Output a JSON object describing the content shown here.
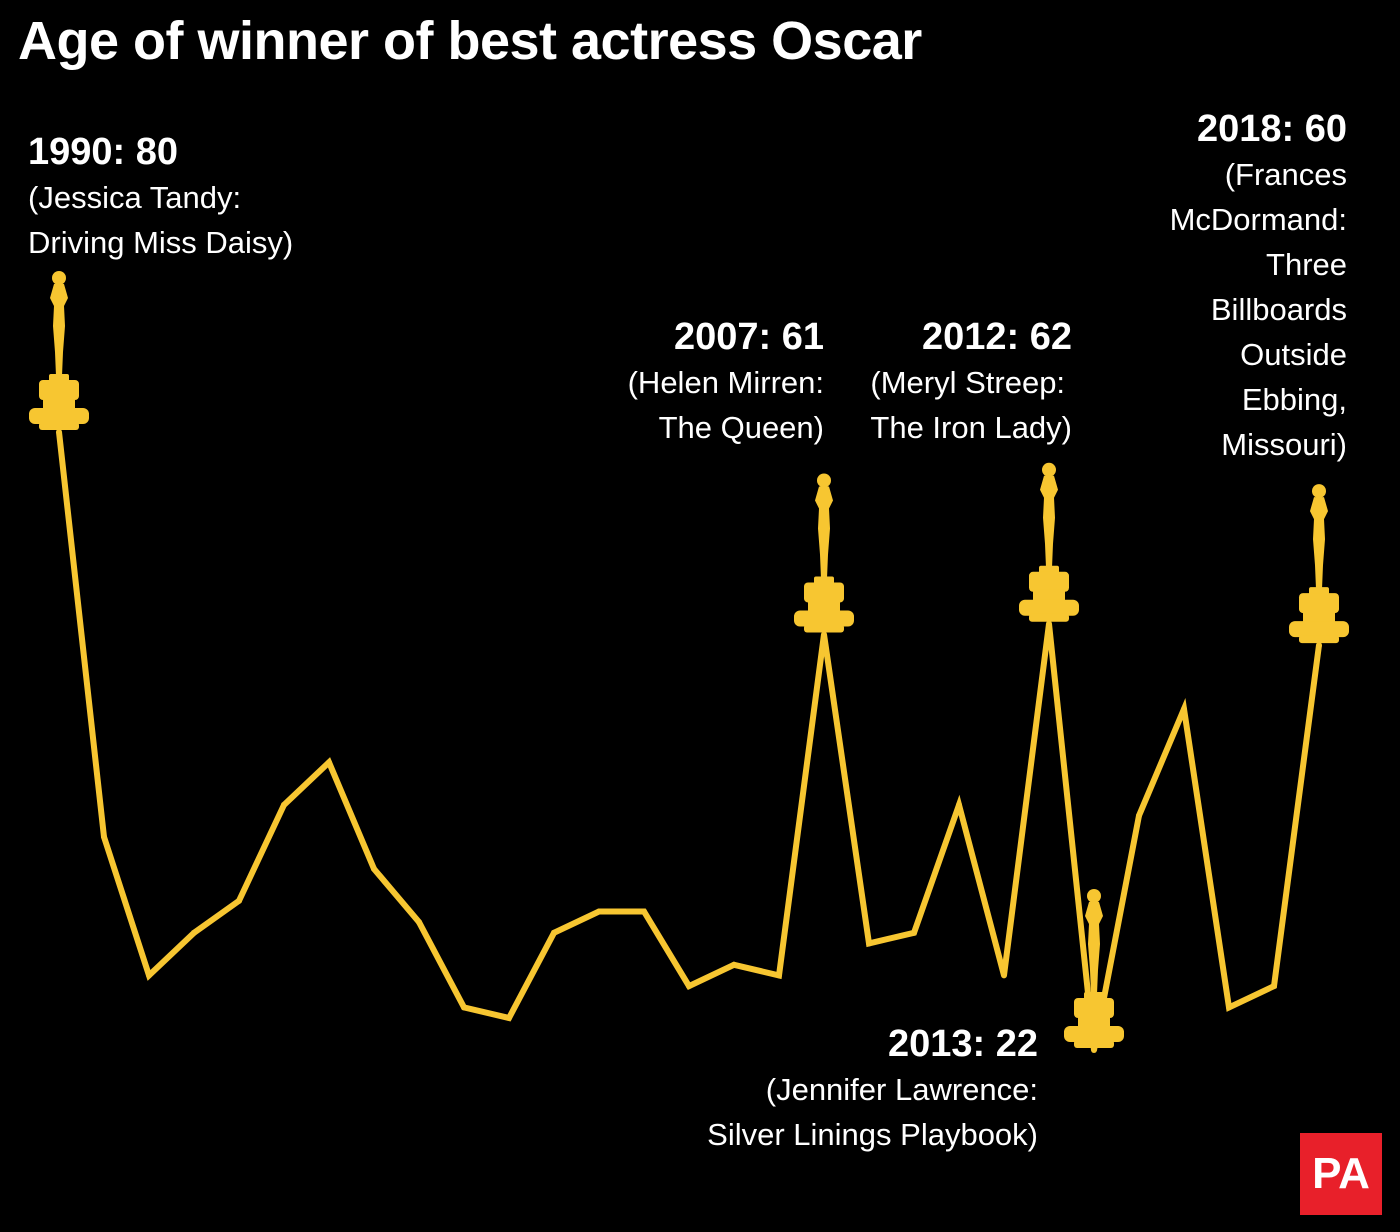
{
  "title": "Age of winner of best actress Oscar",
  "colors": {
    "background": "#000000",
    "line": "#f7c631",
    "text": "#ffffff",
    "logo_bg": "#e8202a"
  },
  "logo": {
    "text": "PA"
  },
  "annotations": [
    {
      "id": "a1990",
      "head": "1990: 80",
      "lines": [
        "(Jessica Tandy:",
        "Driving Miss Daisy)"
      ]
    },
    {
      "id": "a2007",
      "head": "2007: 61",
      "lines": [
        "(Helen Mirren:",
        "The Queen)"
      ]
    },
    {
      "id": "a2012",
      "head": "2012: 62",
      "lines": [
        "(Meryl Streep:",
        "The Iron Lady)"
      ]
    },
    {
      "id": "a2018",
      "head": "2018: 60",
      "lines": [
        "(Frances",
        "McDormand:",
        "Three",
        "Billboards",
        "Outside",
        "Ebbing,",
        "Missouri)"
      ]
    },
    {
      "id": "a2013",
      "head": "2013: 22",
      "lines": [
        "(Jennifer Lawrence:",
        "Silver Linings Playbook)"
      ]
    }
  ],
  "chart_data": {
    "type": "line",
    "title": "Age of winner of best actress Oscar",
    "series": [
      {
        "x": [
          1990,
          1991,
          1992,
          1993,
          1994,
          1995,
          1996,
          1997,
          1998,
          1999,
          2000,
          2001,
          2002,
          2003,
          2004,
          2005,
          2006,
          2007,
          2008,
          2009,
          2010,
          2011,
          2012,
          2013,
          2014,
          2015,
          2016,
          2017,
          2018
        ],
        "values": [
          80,
          42,
          29,
          33,
          36,
          45,
          49,
          39,
          34,
          26,
          25,
          33,
          35,
          35,
          28,
          30,
          29,
          61,
          32,
          33,
          45,
          29,
          62,
          22,
          44,
          54,
          26,
          28,
          60
        ]
      }
    ],
    "highlights": [
      1990,
      2007,
      2012,
      2013,
      2018
    ],
    "axes_visible": false,
    "grid": false
  }
}
